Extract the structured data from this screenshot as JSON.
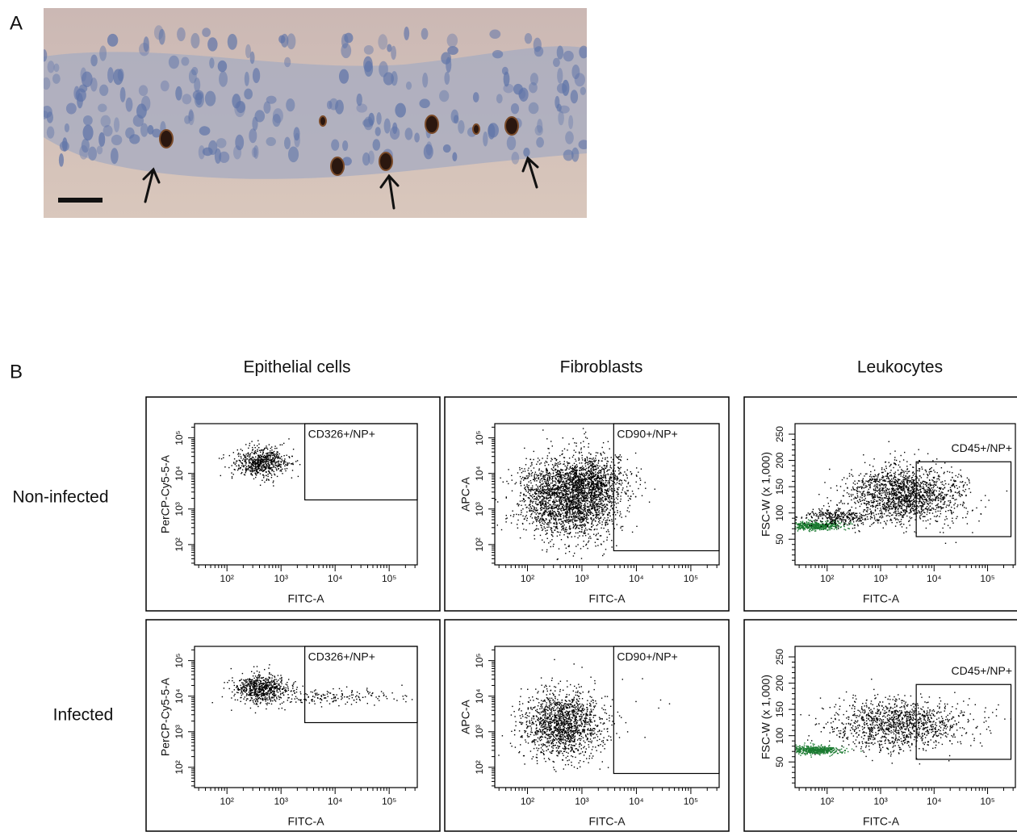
{
  "panel_a": {
    "label": "A"
  },
  "panel_b": {
    "label": "B",
    "columns": [
      "Epithelial cells",
      "Fibroblasts",
      "Leukocytes"
    ],
    "rows": [
      "Non-infected",
      "Infected"
    ],
    "x_label": "FITC-A",
    "x_ticks": [
      "10²",
      "10³",
      "10⁴",
      "10⁵"
    ],
    "y_labels": [
      "PerCP-Cy5-5-A",
      "APC-A",
      "FSC-W (x 1,000)"
    ],
    "y_ticks_log": [
      "10²",
      "10³",
      "10⁴",
      "10⁵"
    ],
    "y_ticks_linear": [
      "50",
      "100",
      "150",
      "200",
      "250"
    ],
    "gates": [
      "CD326+/NP+",
      "CD90+/NP+",
      "CD45+/NP+"
    ]
  }
}
